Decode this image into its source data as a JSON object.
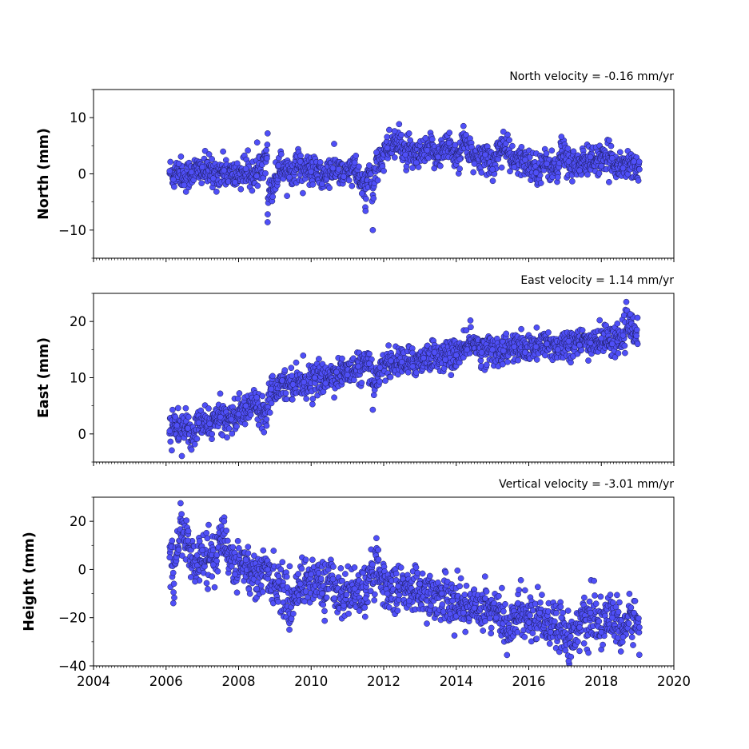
{
  "chart_data": [
    {
      "type": "scatter",
      "title": "North velocity = -0.16 mm/yr",
      "ylabel": "North (mm)",
      "xlabel": "",
      "xlim": [
        2004,
        2020
      ],
      "ylim": [
        -15,
        15
      ],
      "yticks": [
        -10,
        0,
        10
      ],
      "ytick_labels": [
        "−10",
        "0",
        "10"
      ],
      "xtick_labels_shown": false,
      "series": [
        {
          "points": [
            [
              2006.1,
              0.5
            ],
            [
              2006.2,
              -1.0
            ],
            [
              2006.35,
              1.8
            ],
            [
              2006.5,
              -2.0
            ],
            [
              2006.7,
              0.3
            ],
            [
              2007.0,
              1.2
            ],
            [
              2007.3,
              -0.8
            ],
            [
              2007.6,
              0.6
            ],
            [
              2007.9,
              -1.5
            ],
            [
              2008.2,
              0.9
            ],
            [
              2008.5,
              -0.4
            ],
            [
              2008.8,
              7.2
            ],
            [
              2008.8,
              -8.6
            ],
            [
              2009.1,
              1.5
            ],
            [
              2009.4,
              -0.6
            ],
            [
              2009.7,
              2.2
            ],
            [
              2010.0,
              0.4
            ],
            [
              2010.3,
              -1.8
            ],
            [
              2010.6,
              1.0
            ],
            [
              2010.9,
              -0.5
            ],
            [
              2011.2,
              2.0
            ],
            [
              2011.4,
              -3.5
            ],
            [
              2011.5,
              -6.6
            ],
            [
              2011.6,
              1.5
            ],
            [
              2011.7,
              -10.0
            ],
            [
              2011.8,
              3.8
            ],
            [
              2012.1,
              4.6
            ],
            [
              2012.3,
              7.6
            ],
            [
              2012.6,
              3.4
            ],
            [
              2012.9,
              2.0
            ],
            [
              2013.2,
              4.2
            ],
            [
              2013.5,
              3.0
            ],
            [
              2013.8,
              5.5
            ],
            [
              2014.1,
              2.6
            ],
            [
              2014.2,
              8.5
            ],
            [
              2014.5,
              1.8
            ],
            [
              2014.8,
              3.4
            ],
            [
              2015.0,
              0.8
            ],
            [
              2015.3,
              7.5
            ],
            [
              2015.6,
              1.2
            ],
            [
              2015.9,
              2.5
            ],
            [
              2016.2,
              0.2
            ],
            [
              2016.5,
              1.8
            ],
            [
              2016.8,
              -0.6
            ],
            [
              2016.9,
              6.6
            ],
            [
              2017.1,
              2.2
            ],
            [
              2017.4,
              0.6
            ],
            [
              2017.7,
              3.0
            ],
            [
              2018.0,
              1.4
            ],
            [
              2018.3,
              2.8
            ],
            [
              2018.6,
              1.0
            ],
            [
              2018.9,
              2.2
            ],
            [
              2019.05,
              0.8
            ]
          ]
        }
      ]
    },
    {
      "type": "scatter",
      "title": "East velocity = 1.14 mm/yr",
      "ylabel": "East (mm)",
      "xlabel": "",
      "xlim": [
        2004,
        2020
      ],
      "ylim": [
        -5,
        25
      ],
      "yticks": [
        0,
        10,
        20
      ],
      "ytick_labels": [
        "0",
        "10",
        "20"
      ],
      "xtick_labels_shown": false,
      "series": [
        {
          "points": [
            [
              2006.1,
              0.5
            ],
            [
              2006.3,
              1.5
            ],
            [
              2006.6,
              1.0
            ],
            [
              2006.7,
              -2.8
            ],
            [
              2006.9,
              2.0
            ],
            [
              2007.2,
              1.8
            ],
            [
              2007.5,
              3.0
            ],
            [
              2007.8,
              2.6
            ],
            [
              2008.0,
              3.5
            ],
            [
              2008.2,
              5.0
            ],
            [
              2008.5,
              6.5
            ],
            [
              2008.7,
              0.3
            ],
            [
              2008.9,
              8.0
            ],
            [
              2009.2,
              9.5
            ],
            [
              2009.5,
              8.8
            ],
            [
              2009.8,
              9.2
            ],
            [
              2010.1,
              10.0
            ],
            [
              2010.4,
              9.0
            ],
            [
              2010.7,
              11.0
            ],
            [
              2011.0,
              10.5
            ],
            [
              2011.3,
              12.0
            ],
            [
              2011.6,
              12.5
            ],
            [
              2011.7,
              4.3
            ],
            [
              2011.9,
              11.8
            ],
            [
              2012.2,
              13.0
            ],
            [
              2012.5,
              12.8
            ],
            [
              2012.8,
              12.0
            ],
            [
              2013.1,
              13.5
            ],
            [
              2013.4,
              14.5
            ],
            [
              2013.7,
              13.2
            ],
            [
              2014.0,
              14.0
            ],
            [
              2014.3,
              15.0
            ],
            [
              2014.4,
              19.0
            ],
            [
              2014.7,
              14.5
            ],
            [
              2015.0,
              15.0
            ],
            [
              2015.3,
              14.8
            ],
            [
              2015.6,
              15.5
            ],
            [
              2015.9,
              14.5
            ],
            [
              2016.2,
              15.5
            ],
            [
              2016.5,
              16.0
            ],
            [
              2016.8,
              15.0
            ],
            [
              2017.1,
              16.5
            ],
            [
              2017.4,
              15.8
            ],
            [
              2017.7,
              16.2
            ],
            [
              2018.0,
              17.0
            ],
            [
              2018.3,
              16.0
            ],
            [
              2018.6,
              17.5
            ],
            [
              2018.8,
              21.3
            ],
            [
              2019.0,
              16.0
            ]
          ]
        }
      ]
    },
    {
      "type": "scatter",
      "title": "Vertical velocity = -3.01 mm/yr",
      "ylabel": "Height (mm)",
      "xlabel": "",
      "xlim": [
        2004,
        2020
      ],
      "ylim": [
        -40,
        30
      ],
      "yticks": [
        -40,
        -20,
        0,
        20
      ],
      "ytick_labels": [
        "−40",
        "−20",
        "0",
        "20"
      ],
      "xticks": [
        2004,
        2006,
        2008,
        2010,
        2012,
        2014,
        2016,
        2018,
        2020
      ],
      "xtick_labels": [
        "2004",
        "2006",
        "2008",
        "2010",
        "2012",
        "2014",
        "2016",
        "2018",
        "2020"
      ],
      "xtick_labels_shown": true,
      "series": [
        {
          "points": [
            [
              2006.1,
              5.0
            ],
            [
              2006.2,
              -14.0
            ],
            [
              2006.4,
              27.5
            ],
            [
              2006.6,
              12.0
            ],
            [
              2006.8,
              -5.0
            ],
            [
              2007.0,
              8.0
            ],
            [
              2007.3,
              2.0
            ],
            [
              2007.6,
              20.0
            ],
            [
              2007.9,
              -2.0
            ],
            [
              2008.2,
              4.0
            ],
            [
              2008.5,
              -8.0
            ],
            [
              2008.8,
              0.0
            ],
            [
              2009.1,
              -5.0
            ],
            [
              2009.4,
              -25.0
            ],
            [
              2009.7,
              -6.0
            ],
            [
              2010.0,
              -2.0
            ],
            [
              2010.3,
              -10.0
            ],
            [
              2010.6,
              -4.0
            ],
            [
              2010.9,
              -15.0
            ],
            [
              2011.2,
              -8.0
            ],
            [
              2011.5,
              -12.0
            ],
            [
              2011.8,
              13.0
            ],
            [
              2012.1,
              -10.0
            ],
            [
              2012.4,
              -7.0
            ],
            [
              2012.7,
              -13.0
            ],
            [
              2013.0,
              -6.0
            ],
            [
              2013.3,
              -15.0
            ],
            [
              2013.6,
              -10.0
            ],
            [
              2013.9,
              -13.0
            ],
            [
              2014.2,
              -18.0
            ],
            [
              2014.5,
              -16.0
            ],
            [
              2014.8,
              -12.0
            ],
            [
              2015.1,
              -20.0
            ],
            [
              2015.4,
              -35.5
            ],
            [
              2015.7,
              -14.0
            ],
            [
              2016.0,
              -22.0
            ],
            [
              2016.3,
              -18.0
            ],
            [
              2016.6,
              -26.0
            ],
            [
              2016.9,
              -20.0
            ],
            [
              2017.1,
              -38.0
            ],
            [
              2017.4,
              -24.0
            ],
            [
              2017.7,
              -18.0
            ],
            [
              2018.0,
              -26.0
            ],
            [
              2018.3,
              -20.0
            ],
            [
              2018.6,
              -28.0
            ],
            [
              2018.9,
              -18.0
            ],
            [
              2019.05,
              -24.0
            ]
          ]
        }
      ]
    }
  ]
}
